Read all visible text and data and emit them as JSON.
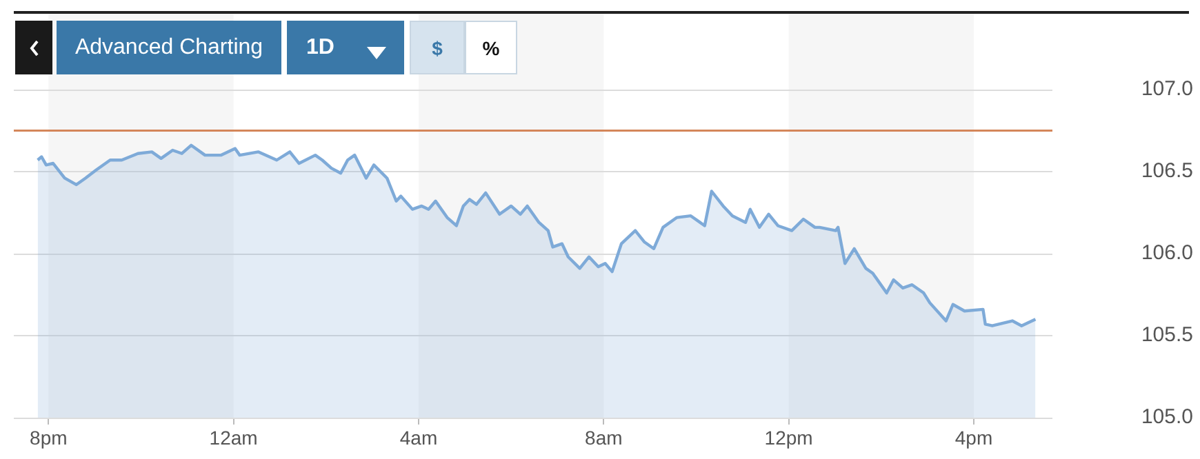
{
  "chart_data": {
    "type": "area",
    "x": [
      "--11-10T19:46",
      "--11-10T19:51",
      "--11-10T19:57",
      "--11-10T20:06",
      "--11-10T20:21",
      "--11-10T20:36",
      "--11-10T20:48",
      "--11-10T21:02",
      "--11-10T21:20",
      "--11-10T21:35",
      "--11-10T21:56",
      "--11-10T22:14",
      "--11-10T22:26",
      "--11-10T22:41",
      "--11-10T22:53",
      "--11-10T23:05",
      "--11-10T23:23",
      "--11-10T23:44",
      "--11-11T00:02",
      "--11-11T00:08",
      "--11-11T00:32",
      "--11-11T00:56",
      "--11-11T01:13",
      "--11-11T01:25",
      "--11-11T01:46",
      "--11-11T01:55",
      "--11-11T02:07",
      "--11-11T02:19",
      "--11-11T02:28",
      "--11-11T02:37",
      "--11-11T02:52",
      "--11-11T03:02",
      "--11-11T03:19",
      "--11-11T03:31",
      "--11-11T03:37",
      "--11-11T03:52",
      "--11-11T04:04",
      "--11-11T04:13",
      "--11-11T04:22",
      "--11-11T04:37",
      "--11-11T04:49",
      "--11-11T04:58",
      "--11-11T05:06",
      "--11-11T05:15",
      "--11-11T05:27",
      "--11-11T05:45",
      "--11-11T06:00",
      "--11-11T06:12",
      "--11-11T06:21",
      "--11-11T06:36",
      "--11-11T06:48",
      "--11-11T06:54",
      "--11-11T07:06",
      "--11-11T07:14",
      "--11-11T07:29",
      "--11-11T07:41",
      "--11-11T07:53",
      "--11-11T08:02",
      "--11-11T08:11",
      "--11-11T08:23",
      "--11-11T08:41",
      "--11-11T08:53",
      "--11-11T09:05",
      "--11-11T09:17",
      "--11-11T09:35",
      "--11-11T09:53",
      "--11-11T10:11",
      "--11-11T10:20",
      "--11-11T10:35",
      "--11-11T10:47",
      "--11-11T11:04",
      "--11-11T11:10",
      "--11-11T11:22",
      "--11-11T11:34",
      "--11-11T11:46",
      "--11-11T12:04",
      "--11-11T12:19",
      "--11-11T12:34",
      "--11-11T12:40",
      "--11-11T13:01",
      "--11-11T13:04",
      "--11-11T13:13",
      "--11-11T13:25",
      "--11-11T13:40",
      "--11-11T13:49",
      "--11-11T14:07",
      "--11-11T14:16",
      "--11-11T14:28",
      "--11-11T14:40",
      "--11-11T14:55",
      "--11-11T15:03",
      "--11-11T15:24",
      "--11-11T15:33",
      "--11-11T15:48",
      "--11-11T16:12",
      "--11-11T16:15",
      "--11-11T16:24",
      "--11-11T16:50",
      "--11-11T17:02",
      "--11-11T17:20"
    ],
    "series": [
      {
        "color": "#7eaad8",
        "values": [
          106.57,
          106.59,
          106.54,
          106.55,
          106.46,
          106.42,
          106.46,
          106.51,
          106.57,
          106.57,
          106.61,
          106.62,
          106.58,
          106.63,
          106.61,
          106.66,
          106.6,
          106.6,
          106.64,
          106.6,
          106.62,
          106.57,
          106.62,
          106.55,
          106.6,
          106.57,
          106.52,
          106.49,
          106.57,
          106.6,
          106.46,
          106.54,
          106.46,
          106.32,
          106.35,
          106.27,
          106.29,
          106.27,
          106.32,
          106.22,
          106.17,
          106.29,
          106.33,
          106.3,
          106.37,
          106.24,
          106.29,
          106.24,
          106.29,
          106.19,
          106.14,
          106.04,
          106.06,
          105.98,
          105.91,
          105.98,
          105.92,
          105.94,
          105.89,
          106.06,
          106.14,
          106.07,
          106.03,
          106.16,
          106.22,
          106.23,
          106.17,
          106.38,
          106.29,
          106.23,
          106.19,
          106.27,
          106.16,
          106.24,
          106.17,
          106.14,
          106.21,
          106.16,
          106.16,
          106.14,
          106.16,
          105.94,
          106.03,
          105.91,
          105.88,
          105.76,
          105.84,
          105.79,
          105.81,
          105.76,
          105.7,
          105.59,
          105.69,
          105.65,
          105.66,
          105.57,
          105.56,
          105.59,
          105.56,
          105.6
        ]
      }
    ],
    "xlim": [
      "--11-10T19:15",
      "--11-11T17:42"
    ],
    "xticks": [
      {
        "value": "--11-10T20:00",
        "label": "8pm"
      },
      {
        "value": "--11-11T00:00",
        "label": "12am"
      },
      {
        "value": "--11-11T04:00",
        "label": "4am"
      },
      {
        "value": "--11-11T08:00",
        "label": "8am"
      },
      {
        "value": "--11-11T12:00",
        "label": "12pm"
      },
      {
        "value": "--11-11T16:00",
        "label": "4pm"
      }
    ],
    "ylim": [
      105,
      107.47
    ],
    "yticks": [
      {
        "value": 105,
        "label": "105.0"
      },
      {
        "value": 105.5,
        "label": "105.5"
      },
      {
        "value": 106,
        "label": "106.0"
      },
      {
        "value": 106.5,
        "label": "106.5"
      },
      {
        "value": 107,
        "label": "107.0"
      }
    ],
    "grid": "y",
    "ref_lines": [
      {
        "axis": "y",
        "value": 106.75,
        "color": "#d4865a"
      }
    ],
    "bands": [
      {
        "axis": "x",
        "from": "--11-10T20:00",
        "to": "--11-11T00:00",
        "color": "#f6f6f6"
      },
      {
        "axis": "x",
        "from": "--11-11T04:00",
        "to": "--11-11T08:00",
        "color": "#f6f6f6"
      },
      {
        "axis": "x",
        "from": "--11-11T12:00",
        "to": "--11-11T16:00",
        "color": "#f6f6f6"
      }
    ],
    "annotations": [
      "Advanced Charting",
      "1D",
      "$",
      "%"
    ]
  }
}
